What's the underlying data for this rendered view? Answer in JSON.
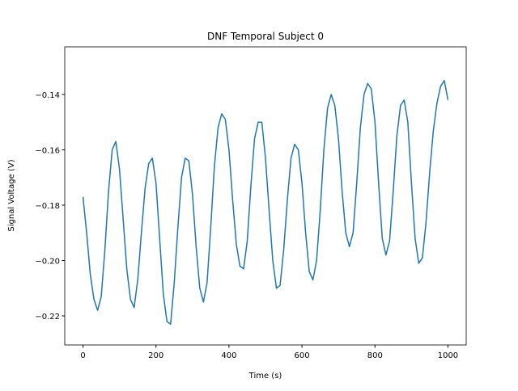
{
  "chart_data": {
    "type": "line",
    "title": "DNF Temporal Subject 0",
    "x_label": "Time (s)",
    "y_label": "Signal Voltage (V)",
    "x": [
      0,
      10,
      20,
      30,
      40,
      50,
      60,
      70,
      80,
      90,
      100,
      110,
      120,
      130,
      140,
      150,
      160,
      170,
      180,
      190,
      200,
      210,
      220,
      230,
      240,
      250,
      260,
      270,
      280,
      290,
      300,
      310,
      320,
      330,
      340,
      350,
      360,
      370,
      380,
      390,
      400,
      410,
      420,
      430,
      440,
      450,
      460,
      470,
      480,
      490,
      500,
      510,
      520,
      530,
      540,
      550,
      560,
      570,
      580,
      590,
      600,
      610,
      620,
      630,
      640,
      650,
      660,
      670,
      680,
      690,
      700,
      710,
      720,
      730,
      740,
      750,
      760,
      770,
      780,
      790,
      800,
      810,
      820,
      830,
      840,
      850,
      860,
      870,
      880,
      890,
      900,
      910,
      920,
      930,
      940,
      950,
      960,
      970,
      980,
      990,
      1000
    ],
    "series": [
      {
        "color": "#1f77b4",
        "values": [
          -0.177,
          -0.19,
          -0.205,
          -0.214,
          -0.218,
          -0.213,
          -0.196,
          -0.175,
          -0.16,
          -0.157,
          -0.167,
          -0.185,
          -0.203,
          -0.214,
          -0.217,
          -0.207,
          -0.19,
          -0.174,
          -0.165,
          -0.163,
          -0.172,
          -0.192,
          -0.212,
          -0.222,
          -0.223,
          -0.208,
          -0.188,
          -0.17,
          -0.163,
          -0.164,
          -0.176,
          -0.195,
          -0.21,
          -0.215,
          -0.208,
          -0.188,
          -0.166,
          -0.152,
          -0.147,
          -0.149,
          -0.16,
          -0.178,
          -0.194,
          -0.202,
          -0.203,
          -0.193,
          -0.173,
          -0.156,
          -0.15,
          -0.15,
          -0.163,
          -0.182,
          -0.2,
          -0.21,
          -0.209,
          -0.196,
          -0.178,
          -0.163,
          -0.158,
          -0.16,
          -0.172,
          -0.19,
          -0.204,
          -0.207,
          -0.2,
          -0.182,
          -0.16,
          -0.145,
          -0.14,
          -0.144,
          -0.156,
          -0.175,
          -0.19,
          -0.195,
          -0.19,
          -0.172,
          -0.152,
          -0.14,
          -0.136,
          -0.138,
          -0.15,
          -0.172,
          -0.192,
          -0.198,
          -0.193,
          -0.175,
          -0.155,
          -0.144,
          -0.142,
          -0.15,
          -0.172,
          -0.192,
          -0.201,
          -0.199,
          -0.186,
          -0.168,
          -0.153,
          -0.143,
          -0.137,
          -0.135,
          -0.142
        ]
      }
    ],
    "xlim": [
      -50,
      1050
    ],
    "xticks": [
      0,
      200,
      400,
      600,
      800,
      1000
    ],
    "ylim": [
      -0.2305,
      -0.1228
    ],
    "yticks": [
      {
        "value": -0.22,
        "label": "−0.22"
      },
      {
        "value": -0.2,
        "label": "−0.20"
      },
      {
        "value": -0.18,
        "label": "−0.18"
      },
      {
        "value": -0.16,
        "label": "−0.16"
      },
      {
        "value": -0.14,
        "label": "−0.14"
      }
    ]
  }
}
